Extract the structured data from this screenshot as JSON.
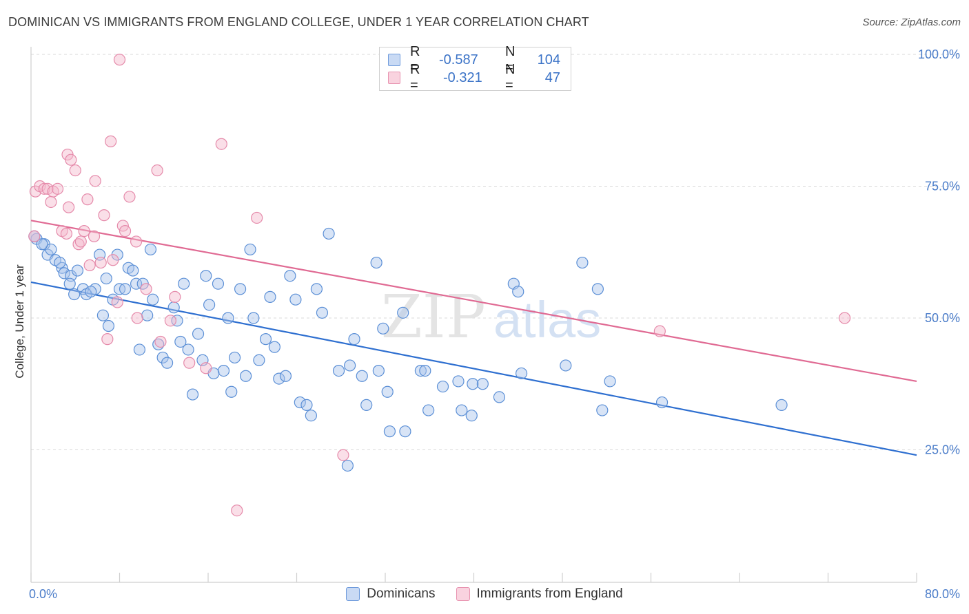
{
  "title": "DOMINICAN VS IMMIGRANTS FROM ENGLAND COLLEGE, UNDER 1 YEAR CORRELATION CHART",
  "source": "Source: ZipAtlas.com",
  "legend": {
    "rows": [
      {
        "r_label": "R =",
        "r_value": "-0.587",
        "n_label": "N =",
        "n_value": "104"
      },
      {
        "r_label": "R =",
        "r_value": "-0.321",
        "n_label": "N =",
        "n_value": "47"
      }
    ]
  },
  "bottom_legend": [
    "Dominicans",
    "Immigrants from England"
  ],
  "watermark": {
    "zip": "ZIP",
    "atlas": "atlas"
  },
  "colors": {
    "blue_fill": "#a9c4ec",
    "blue_stroke": "#5b8fd6",
    "blue_line": "#2e6fd0",
    "pink_fill": "#f5b7cb",
    "pink_stroke": "#e58aaa",
    "pink_line": "#e06a93",
    "grid": "#d8d8d8",
    "tick_text": "#4a7cc9"
  },
  "chart_data": {
    "type": "scatter",
    "title": "DOMINICAN VS IMMIGRANTS FROM ENGLAND COLLEGE, UNDER 1 YEAR CORRELATION CHART",
    "xlabel": "",
    "ylabel": "College, Under 1 year",
    "xlim": [
      0,
      80
    ],
    "ylim": [
      0,
      102
    ],
    "x_tick_labels": [
      "0.0%",
      "80.0%"
    ],
    "y_ticks": [
      25,
      50,
      75,
      100
    ],
    "y_tick_labels": [
      "25.0%",
      "50.0%",
      "75.0%",
      "100.0%"
    ],
    "grid": true,
    "legend_position": "top-center",
    "series": [
      {
        "name": "Dominicans",
        "color": "#a9c4ec",
        "trend": {
          "x": [
            0,
            80
          ],
          "y": [
            56.8,
            24.0
          ]
        },
        "points": [
          [
            0.5,
            65.0
          ],
          [
            1.2,
            64.0
          ],
          [
            1.5,
            62.0
          ],
          [
            1.8,
            63.0
          ],
          [
            2.2,
            61.0
          ],
          [
            2.8,
            59.5
          ],
          [
            3.0,
            58.5
          ],
          [
            2.6,
            60.5
          ],
          [
            3.6,
            58.0
          ],
          [
            4.2,
            59.0
          ],
          [
            3.5,
            56.5
          ],
          [
            4.7,
            55.5
          ],
          [
            5.0,
            54.5
          ],
          [
            5.8,
            55.5
          ],
          [
            5.4,
            55.0
          ],
          [
            6.2,
            62.0
          ],
          [
            6.8,
            57.5
          ],
          [
            7.4,
            53.5
          ],
          [
            6.5,
            50.5
          ],
          [
            7.0,
            48.5
          ],
          [
            8.0,
            55.5
          ],
          [
            8.5,
            55.5
          ],
          [
            8.8,
            59.5
          ],
          [
            9.2,
            59.0
          ],
          [
            7.8,
            62.0
          ],
          [
            9.5,
            56.5
          ],
          [
            10.1,
            56.5
          ],
          [
            10.5,
            50.5
          ],
          [
            11.0,
            53.5
          ],
          [
            10.8,
            63.0
          ],
          [
            11.5,
            45.0
          ],
          [
            9.8,
            44.0
          ],
          [
            11.9,
            42.5
          ],
          [
            12.3,
            41.5
          ],
          [
            12.9,
            52.0
          ],
          [
            13.5,
            45.5
          ],
          [
            13.8,
            56.5
          ],
          [
            14.2,
            44.0
          ],
          [
            14.6,
            35.5
          ],
          [
            15.1,
            47.0
          ],
          [
            15.8,
            58.0
          ],
          [
            16.1,
            52.5
          ],
          [
            16.5,
            39.5
          ],
          [
            16.9,
            56.5
          ],
          [
            17.4,
            40.0
          ],
          [
            17.8,
            50.0
          ],
          [
            18.1,
            36.0
          ],
          [
            18.4,
            42.5
          ],
          [
            18.9,
            55.5
          ],
          [
            19.4,
            39.0
          ],
          [
            19.8,
            63.0
          ],
          [
            20.1,
            50.0
          ],
          [
            20.6,
            42.0
          ],
          [
            21.2,
            46.0
          ],
          [
            21.6,
            54.0
          ],
          [
            22.0,
            44.5
          ],
          [
            22.4,
            38.5
          ],
          [
            23.0,
            39.0
          ],
          [
            23.4,
            58.0
          ],
          [
            23.9,
            53.5
          ],
          [
            24.3,
            34.0
          ],
          [
            25.3,
            31.5
          ],
          [
            25.8,
            55.5
          ],
          [
            26.3,
            51.0
          ],
          [
            26.9,
            66.0
          ],
          [
            27.8,
            40.0
          ],
          [
            28.6,
            22.0
          ],
          [
            28.8,
            41.0
          ],
          [
            29.2,
            46.0
          ],
          [
            29.9,
            39.0
          ],
          [
            30.3,
            33.5
          ],
          [
            31.2,
            60.5
          ],
          [
            31.4,
            40.0
          ],
          [
            31.8,
            48.0
          ],
          [
            32.2,
            36.0
          ],
          [
            32.4,
            28.5
          ],
          [
            33.8,
            28.5
          ],
          [
            33.6,
            51.0
          ],
          [
            35.2,
            40.0
          ],
          [
            35.6,
            40.0
          ],
          [
            35.9,
            32.5
          ],
          [
            37.2,
            37.0
          ],
          [
            38.6,
            38.0
          ],
          [
            38.9,
            32.5
          ],
          [
            39.8,
            31.5
          ],
          [
            39.9,
            37.5
          ],
          [
            40.8,
            37.5
          ],
          [
            42.3,
            35.0
          ],
          [
            43.6,
            56.5
          ],
          [
            44.0,
            55.0
          ],
          [
            44.3,
            39.5
          ],
          [
            48.3,
            41.0
          ],
          [
            49.8,
            60.5
          ],
          [
            51.2,
            55.5
          ],
          [
            51.6,
            32.5
          ],
          [
            52.3,
            38.0
          ],
          [
            57.0,
            34.0
          ],
          [
            67.8,
            33.5
          ],
          [
            0.3,
            65.5
          ],
          [
            1.0,
            64.0
          ],
          [
            3.9,
            54.5
          ],
          [
            13.2,
            49.5
          ],
          [
            15.5,
            42.0
          ],
          [
            24.9,
            33.5
          ]
        ]
      },
      {
        "name": "Immigrants from England",
        "color": "#f5b7cb",
        "trend": {
          "x": [
            0,
            80
          ],
          "y": [
            68.5,
            38.0
          ]
        },
        "points": [
          [
            0.3,
            65.5
          ],
          [
            0.4,
            74.0
          ],
          [
            0.8,
            75.0
          ],
          [
            1.2,
            74.5
          ],
          [
            1.5,
            74.5
          ],
          [
            1.8,
            72.0
          ],
          [
            2.0,
            74.0
          ],
          [
            2.4,
            74.5
          ],
          [
            2.8,
            66.5
          ],
          [
            3.2,
            66.0
          ],
          [
            3.3,
            81.0
          ],
          [
            3.4,
            71.0
          ],
          [
            3.6,
            80.0
          ],
          [
            4.0,
            78.0
          ],
          [
            4.3,
            64.0
          ],
          [
            4.5,
            64.5
          ],
          [
            4.8,
            66.5
          ],
          [
            5.1,
            72.5
          ],
          [
            5.3,
            60.0
          ],
          [
            5.7,
            65.5
          ],
          [
            5.8,
            76.0
          ],
          [
            6.3,
            60.5
          ],
          [
            6.6,
            69.5
          ],
          [
            6.9,
            46.0
          ],
          [
            7.2,
            83.5
          ],
          [
            7.4,
            61.0
          ],
          [
            7.8,
            53.0
          ],
          [
            8.0,
            99.0
          ],
          [
            8.3,
            67.5
          ],
          [
            8.5,
            66.5
          ],
          [
            8.9,
            73.0
          ],
          [
            9.5,
            64.5
          ],
          [
            9.6,
            50.0
          ],
          [
            10.4,
            55.5
          ],
          [
            11.4,
            78.0
          ],
          [
            11.7,
            45.5
          ],
          [
            12.6,
            49.5
          ],
          [
            13.0,
            54.0
          ],
          [
            14.3,
            41.5
          ],
          [
            15.8,
            40.5
          ],
          [
            17.2,
            83.0
          ],
          [
            18.6,
            13.5
          ],
          [
            20.4,
            69.0
          ],
          [
            28.2,
            24.0
          ],
          [
            33.0,
            100.0
          ],
          [
            56.8,
            47.5
          ],
          [
            73.5,
            50.0
          ]
        ]
      }
    ]
  }
}
